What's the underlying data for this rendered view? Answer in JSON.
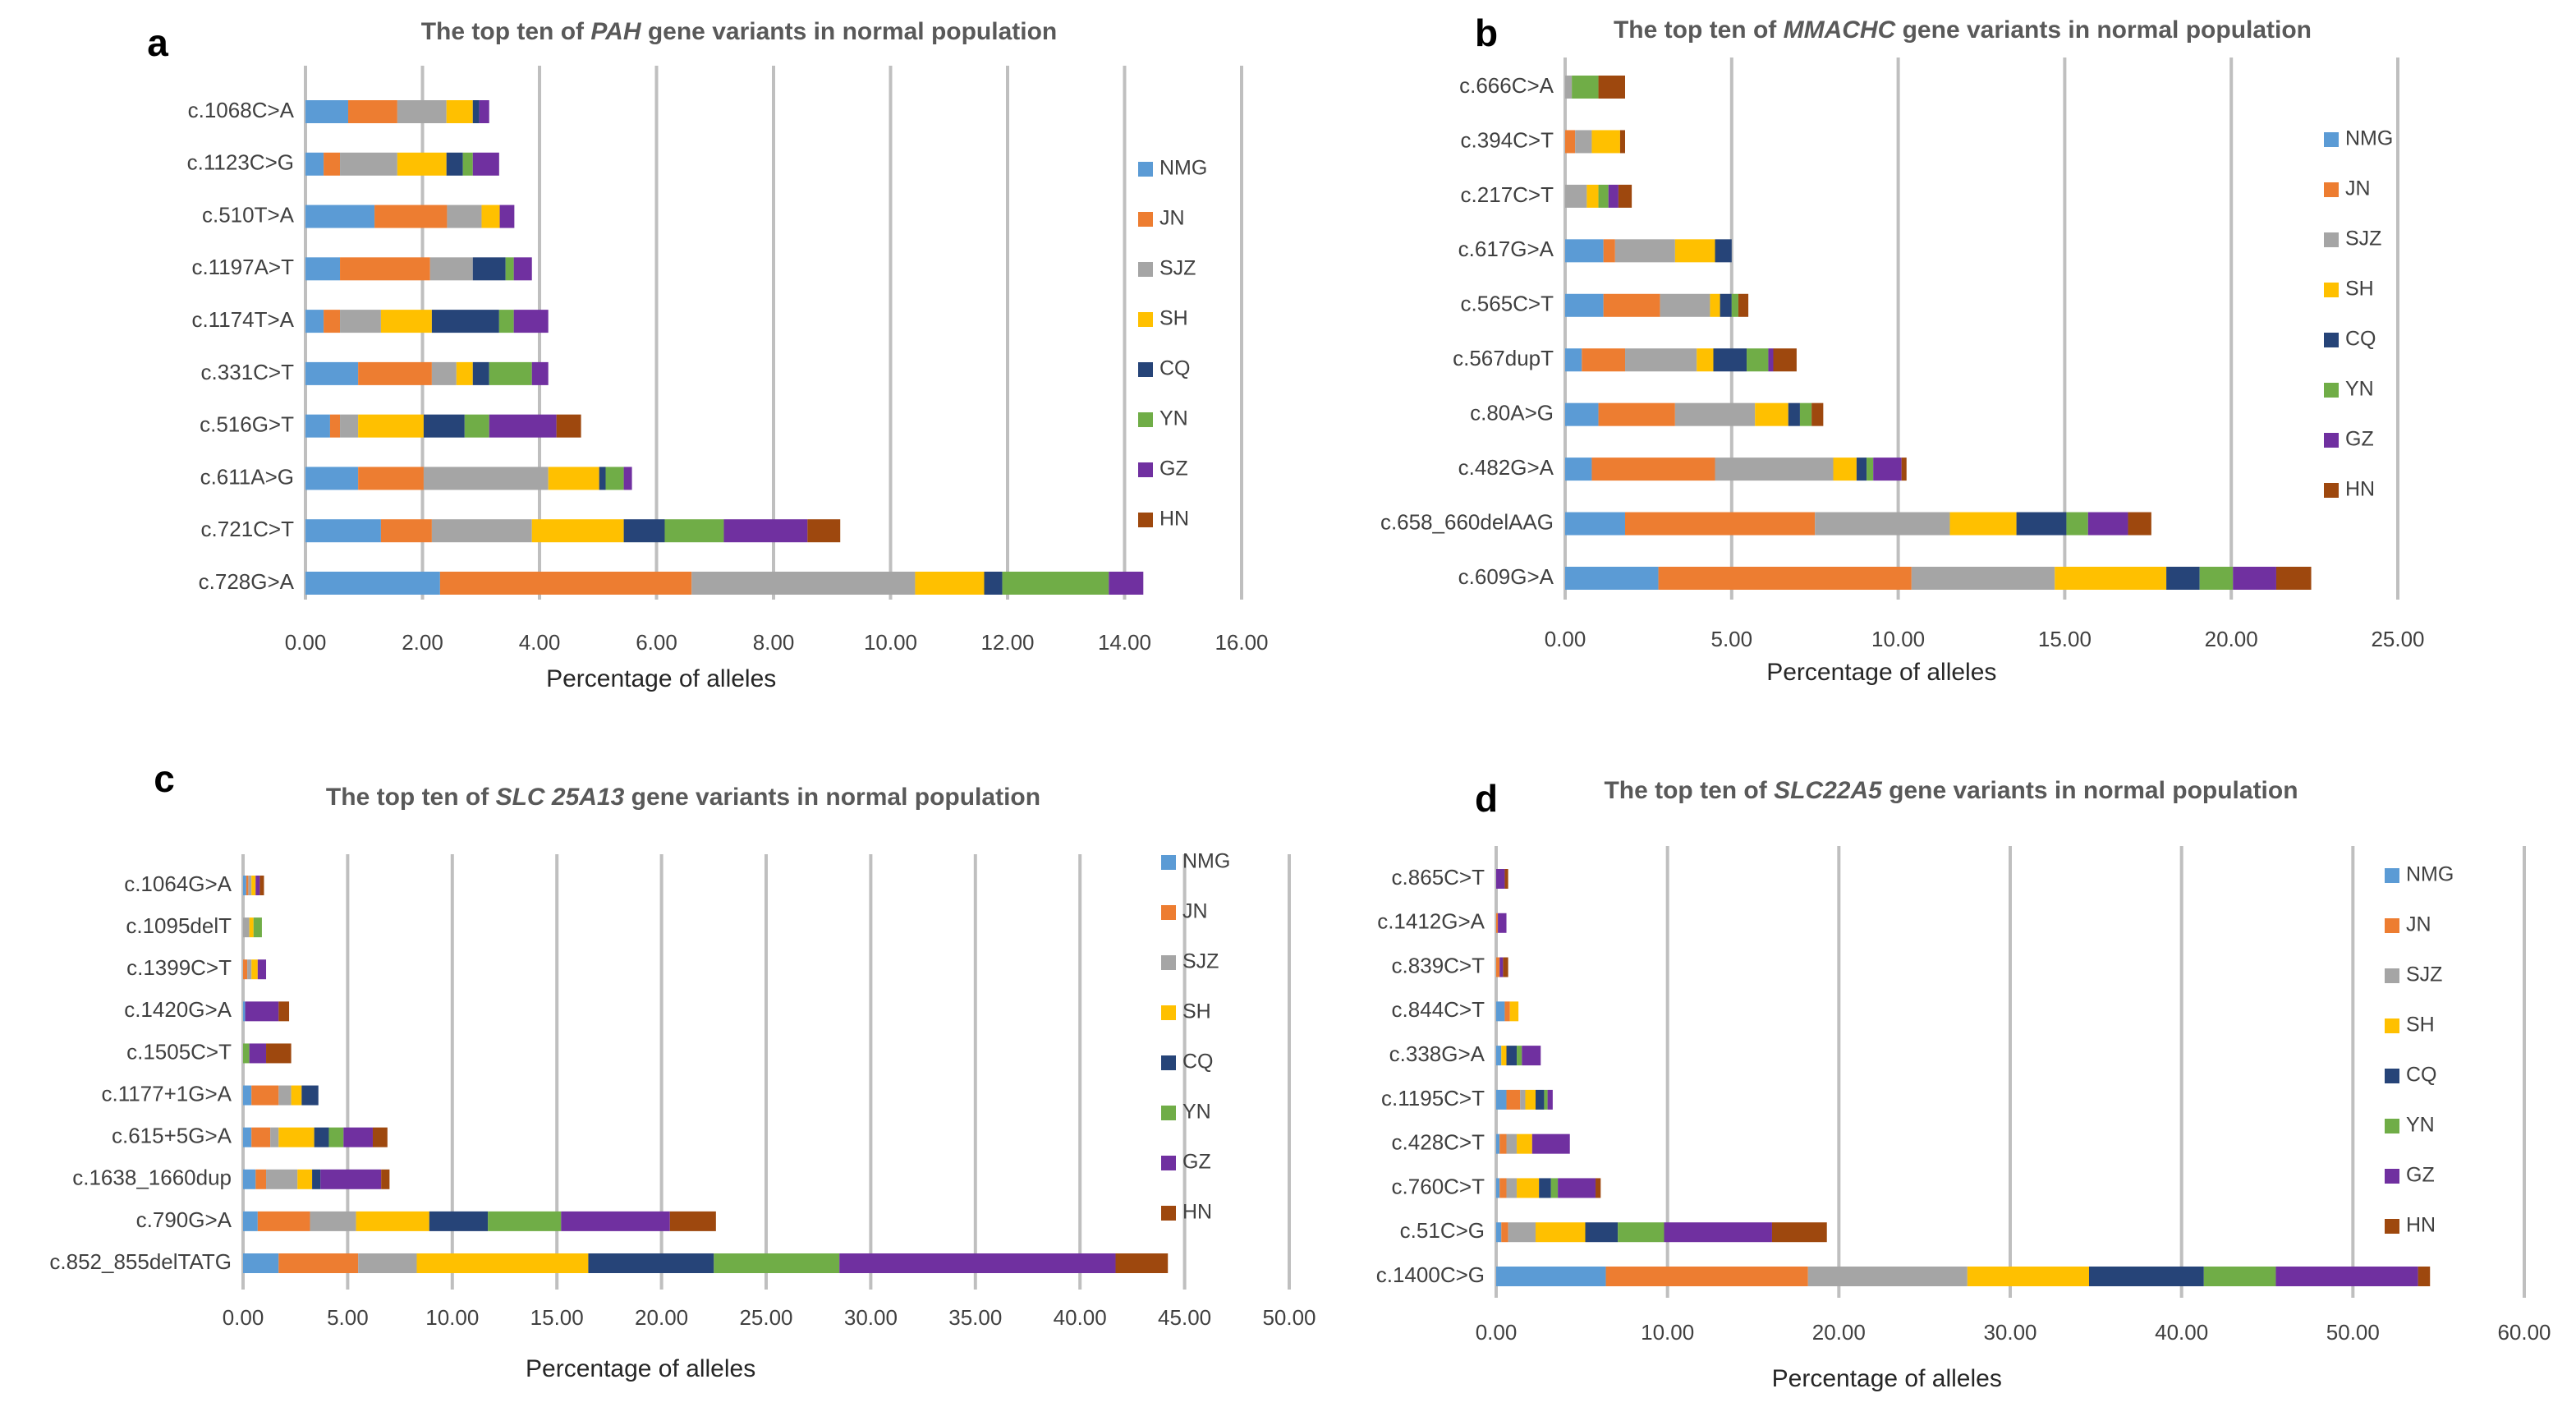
{
  "chart_data": [
    {
      "type": "bar",
      "orientation": "horizontal",
      "panel_label": "a",
      "title": {
        "before": "The top ten of",
        "gene": "PAH",
        "after": "gene variants in normal population"
      },
      "x_label": "Percentage of alleles",
      "legend": "right",
      "grid": true,
      "xlim": [
        0,
        16
      ],
      "xticks": [
        {
          "value": 0,
          "label": "0.00"
        },
        {
          "value": 2,
          "label": "2.00"
        },
        {
          "value": 4,
          "label": "4.00"
        },
        {
          "value": 6,
          "label": "6.00"
        },
        {
          "value": 8,
          "label": "8.00"
        },
        {
          "value": 10,
          "label": "10.00"
        },
        {
          "value": 12,
          "label": "12.00"
        },
        {
          "value": 14,
          "label": "14.00"
        },
        {
          "value": 16,
          "label": "16.00"
        }
      ],
      "categories": [
        "c.1068C>A",
        "c.1123C>G",
        "c.510T>A",
        "c.1197A>T",
        "c.1174T>A",
        "c.331C>T",
        "c.516G>T",
        "c.611A>G",
        "c.721C>T",
        "c.728G>A"
      ],
      "series": [
        {
          "name": "NMG",
          "color": "#5b9bd5",
          "values": [
            0.73,
            0.31,
            1.18,
            0.59,
            0.31,
            0.9,
            0.42,
            0.9,
            1.29,
            2.3
          ]
        },
        {
          "name": "JN",
          "color": "#ed7d31",
          "values": [
            0.84,
            0.28,
            1.24,
            1.54,
            0.28,
            1.26,
            0.17,
            1.12,
            0.87,
            4.3
          ]
        },
        {
          "name": "SJZ",
          "color": "#a5a5a5",
          "values": [
            0.84,
            0.98,
            0.59,
            0.73,
            0.7,
            0.42,
            0.31,
            2.13,
            1.71,
            3.82
          ]
        },
        {
          "name": "SH",
          "color": "#ffc000",
          "values": [
            0.45,
            0.84,
            0.31,
            0,
            0.87,
            0.28,
            1.12,
            0.87,
            1.57,
            1.18
          ]
        },
        {
          "name": "CQ",
          "color": "#264478",
          "values": [
            0.11,
            0.28,
            0,
            0.56,
            1.15,
            0.28,
            0.7,
            0.11,
            0.7,
            0.31
          ]
        },
        {
          "name": "YN",
          "color": "#70ad47",
          "values": [
            0,
            0.17,
            0,
            0.14,
            0.25,
            0.73,
            0.42,
            0.31,
            1.01,
            1.82
          ]
        },
        {
          "name": "GZ",
          "color": "#7030a0",
          "values": [
            0.17,
            0.45,
            0.25,
            0.31,
            0.59,
            0.28,
            1.15,
            0.14,
            1.43,
            0.59
          ]
        },
        {
          "name": "HN",
          "color": "#9e480e",
          "values": [
            0,
            0,
            0,
            0,
            0,
            0,
            0.42,
            0,
            0.56,
            0
          ]
        }
      ]
    },
    {
      "type": "bar",
      "orientation": "horizontal",
      "panel_label": "b",
      "title": {
        "before": "The top ten of",
        "gene": "MMACHC",
        "after": "gene variants in normal population"
      },
      "x_label": "Percentage of alleles",
      "legend": "right",
      "grid": true,
      "xlim": [
        0,
        25
      ],
      "xticks": [
        {
          "value": 0,
          "label": "0.00"
        },
        {
          "value": 5,
          "label": "5.00"
        },
        {
          "value": 10,
          "label": "10.00"
        },
        {
          "value": 15,
          "label": "15.00"
        },
        {
          "value": 20,
          "label": "20.00"
        },
        {
          "value": 25,
          "label": "25.00"
        }
      ],
      "categories": [
        "c.666C>A",
        "c.394C>T",
        "c.217C>T",
        "c.617G>A",
        "c.565C>T",
        "c.567dupT",
        "c.80A>G",
        "c.482G>A",
        "c.658_660delAAG",
        "c.609G>A"
      ],
      "series": [
        {
          "name": "NMG",
          "color": "#5b9bd5",
          "values": [
            0,
            0,
            0,
            1.15,
            1.15,
            0.5,
            1.0,
            0.8,
            1.8,
            2.8
          ]
        },
        {
          "name": "JN",
          "color": "#ed7d31",
          "values": [
            0,
            0.3,
            0,
            0.35,
            1.7,
            1.3,
            2.3,
            3.7,
            5.7,
            7.6
          ]
        },
        {
          "name": "SJZ",
          "color": "#a5a5a5",
          "values": [
            0.2,
            0.5,
            0.65,
            1.8,
            1.5,
            2.15,
            2.4,
            3.55,
            4.05,
            4.3
          ]
        },
        {
          "name": "SH",
          "color": "#ffc000",
          "values": [
            0,
            0.85,
            0.35,
            1.2,
            0.3,
            0.5,
            1.0,
            0.7,
            2.0,
            3.35
          ]
        },
        {
          "name": "CQ",
          "color": "#264478",
          "values": [
            0,
            0,
            0,
            0.5,
            0.35,
            1.0,
            0.35,
            0.3,
            1.5,
            1.0
          ]
        },
        {
          "name": "YN",
          "color": "#70ad47",
          "values": [
            0.8,
            0,
            0.3,
            0,
            0.2,
            0.65,
            0.35,
            0.2,
            0.65,
            1.0
          ]
        },
        {
          "name": "GZ",
          "color": "#7030a0",
          "values": [
            0,
            0,
            0.3,
            0,
            0,
            0.15,
            0,
            0.85,
            1.2,
            1.3
          ]
        },
        {
          "name": "HN",
          "color": "#9e480e",
          "values": [
            0.8,
            0.15,
            0.4,
            0,
            0.3,
            0.7,
            0.35,
            0.15,
            0.7,
            1.05
          ]
        }
      ]
    },
    {
      "type": "bar",
      "orientation": "horizontal",
      "panel_label": "c",
      "title": {
        "before": "The top ten of",
        "gene": "SLC 25A13",
        "after": "gene variants in normal population"
      },
      "x_label": "Percentage of alleles",
      "legend": "right",
      "grid": true,
      "xlim": [
        0,
        50
      ],
      "xticks": [
        {
          "value": 0,
          "label": "0.00"
        },
        {
          "value": 5,
          "label": "5.00"
        },
        {
          "value": 10,
          "label": "10.00"
        },
        {
          "value": 15,
          "label": "15.00"
        },
        {
          "value": 20,
          "label": "20.00"
        },
        {
          "value": 25,
          "label": "25.00"
        },
        {
          "value": 30,
          "label": "30.00"
        },
        {
          "value": 35,
          "label": "35.00"
        },
        {
          "value": 40,
          "label": "40.00"
        },
        {
          "value": 45,
          "label": "45.00"
        },
        {
          "value": 50,
          "label": "50.00"
        }
      ],
      "categories": [
        "c.1064G>A",
        "c.1095delT",
        "c.1399C>T",
        "c.1420G>A",
        "c.1505C>T",
        "c.1177+1G>A",
        "c.615+5G>A",
        "c.1638_1660dup",
        "c.790G>A",
        "c.852_855delTATG"
      ],
      "series": [
        {
          "name": "NMG",
          "color": "#5b9bd5",
          "values": [
            0.15,
            0,
            0,
            0.1,
            0,
            0.4,
            0.4,
            0.6,
            0.7,
            1.7
          ]
        },
        {
          "name": "JN",
          "color": "#ed7d31",
          "values": [
            0.1,
            0,
            0.2,
            0,
            0,
            1.3,
            0.9,
            0.5,
            2.5,
            3.8
          ]
        },
        {
          "name": "SJZ",
          "color": "#a5a5a5",
          "values": [
            0.15,
            0.3,
            0.2,
            0,
            0,
            0.6,
            0.4,
            1.5,
            2.2,
            2.8
          ]
        },
        {
          "name": "SH",
          "color": "#ffc000",
          "values": [
            0.2,
            0.2,
            0.3,
            0,
            0,
            0.5,
            1.7,
            0.7,
            3.5,
            8.2
          ]
        },
        {
          "name": "CQ",
          "color": "#264478",
          "values": [
            0,
            0,
            0,
            0,
            0,
            0.8,
            0.7,
            0.4,
            2.8,
            6.0
          ]
        },
        {
          "name": "YN",
          "color": "#70ad47",
          "values": [
            0,
            0.4,
            0,
            0,
            0.3,
            0,
            0.7,
            0,
            3.5,
            6.0
          ]
        },
        {
          "name": "GZ",
          "color": "#7030a0",
          "values": [
            0.2,
            0,
            0.4,
            1.6,
            0.8,
            0,
            1.4,
            2.9,
            5.2,
            13.2
          ]
        },
        {
          "name": "HN",
          "color": "#9e480e",
          "values": [
            0.2,
            0,
            0,
            0.5,
            1.2,
            0,
            0.7,
            0.4,
            2.2,
            2.5
          ]
        }
      ]
    },
    {
      "type": "bar",
      "orientation": "horizontal",
      "panel_label": "d",
      "title": {
        "before": "The top ten of",
        "gene": "SLC22A5",
        "after": "gene variants in normal population"
      },
      "x_label": "Percentage of alleles",
      "legend": "right",
      "grid": true,
      "xlim": [
        0,
        60
      ],
      "xticks": [
        {
          "value": 0,
          "label": "0.00"
        },
        {
          "value": 10,
          "label": "10.00"
        },
        {
          "value": 20,
          "label": "20.00"
        },
        {
          "value": 30,
          "label": "30.00"
        },
        {
          "value": 40,
          "label": "40.00"
        },
        {
          "value": 50,
          "label": "50.00"
        },
        {
          "value": 60,
          "label": "60.00"
        }
      ],
      "categories": [
        "c.865C>T",
        "c.1412G>A",
        "c.839C>T",
        "c.844C>T",
        "c.338G>A",
        "c.1195C>T",
        "c.428C>T",
        "c.760C>T",
        "c.51C>G",
        "c.1400C>G"
      ],
      "series": [
        {
          "name": "NMG",
          "color": "#5b9bd5",
          "values": [
            0,
            0,
            0,
            0.5,
            0.3,
            0.6,
            0.2,
            0.2,
            0.3,
            6.4
          ]
        },
        {
          "name": "JN",
          "color": "#ed7d31",
          "values": [
            0,
            0.1,
            0.2,
            0.3,
            0,
            0.8,
            0.4,
            0.4,
            0.4,
            11.8
          ]
        },
        {
          "name": "SJZ",
          "color": "#a5a5a5",
          "values": [
            0,
            0,
            0,
            0,
            0,
            0.3,
            0.6,
            0.6,
            1.6,
            9.3
          ]
        },
        {
          "name": "SH",
          "color": "#ffc000",
          "values": [
            0,
            0,
            0,
            0.5,
            0.3,
            0.6,
            0.9,
            1.3,
            2.9,
            7.1
          ]
        },
        {
          "name": "CQ",
          "color": "#264478",
          "values": [
            0,
            0,
            0,
            0,
            0.6,
            0.5,
            0,
            0.7,
            1.9,
            6.7
          ]
        },
        {
          "name": "YN",
          "color": "#70ad47",
          "values": [
            0,
            0,
            0,
            0,
            0.3,
            0.2,
            0,
            0.4,
            2.7,
            4.2
          ]
        },
        {
          "name": "GZ",
          "color": "#7030a0",
          "values": [
            0.5,
            0.5,
            0.2,
            0,
            1.1,
            0.3,
            2.2,
            2.2,
            6.3,
            8.3
          ]
        },
        {
          "name": "HN",
          "color": "#9e480e",
          "values": [
            0.2,
            0,
            0.3,
            0,
            0,
            0,
            0,
            0.3,
            3.2,
            0.7
          ]
        }
      ]
    }
  ]
}
